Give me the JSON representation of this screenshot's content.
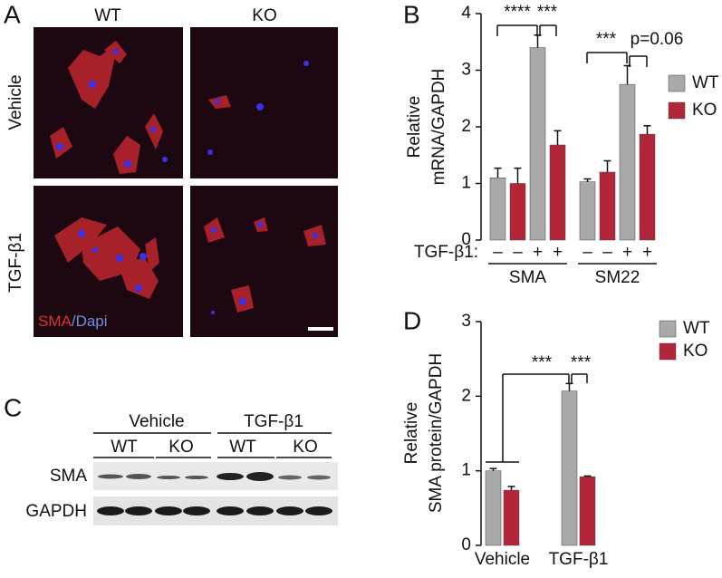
{
  "panels": {
    "a": {
      "letter": "A",
      "columns": [
        "WT",
        "KO"
      ],
      "rows": [
        "Vehicle",
        "TGF-β1"
      ],
      "stain": [
        "SMA",
        "/Dapi"
      ]
    },
    "c": {
      "letter": "C",
      "treatments": [
        "Vehicle",
        "TGF-β1"
      ],
      "genotypes": [
        "WT",
        "KO",
        "WT",
        "KO"
      ],
      "blots": [
        "SMA",
        "GAPDH"
      ]
    }
  },
  "chart_data": [
    {
      "type": "bar",
      "letter": "B",
      "ylabel": [
        "Relative",
        "mRNA/GAPDH"
      ],
      "groups": [
        "SMA",
        "SM22"
      ],
      "treatment_row": {
        "label": "TGF-β1:",
        "signs": [
          "–",
          "–",
          "+",
          "+",
          "–",
          "–",
          "+",
          "+"
        ]
      },
      "series": [
        {
          "name": "WT",
          "color": "#a9a9a9",
          "values": [
            1.1,
            3.4,
            1.03,
            2.75
          ],
          "errors": [
            0.17,
            0.22,
            0.05,
            0.33
          ]
        },
        {
          "name": "KO",
          "color": "#b3263a",
          "values": [
            1.0,
            1.68,
            1.2,
            1.87
          ],
          "errors": [
            0.27,
            0.25,
            0.2,
            0.15
          ]
        }
      ],
      "ylim": [
        0,
        4
      ],
      "yticks": [
        0,
        1,
        2,
        3,
        4
      ],
      "annotations": [
        "****",
        "***",
        "***",
        "p=0.06"
      ]
    },
    {
      "type": "bar",
      "letter": "D",
      "ylabel": [
        "Relative",
        "SMA protein/GAPDH"
      ],
      "categories": [
        "Vehicle",
        "TGF-β1"
      ],
      "series": [
        {
          "name": "WT",
          "color": "#a9a9a9",
          "values": [
            1.0,
            2.07
          ],
          "errors": [
            0.03,
            0.1
          ]
        },
        {
          "name": "KO",
          "color": "#b3263a",
          "values": [
            0.74,
            0.92
          ],
          "errors": [
            0.05,
            0.01
          ]
        }
      ],
      "ylim": [
        0,
        3
      ],
      "yticks": [
        0,
        1,
        2,
        3
      ],
      "annotations": [
        "***",
        "***"
      ]
    }
  ]
}
